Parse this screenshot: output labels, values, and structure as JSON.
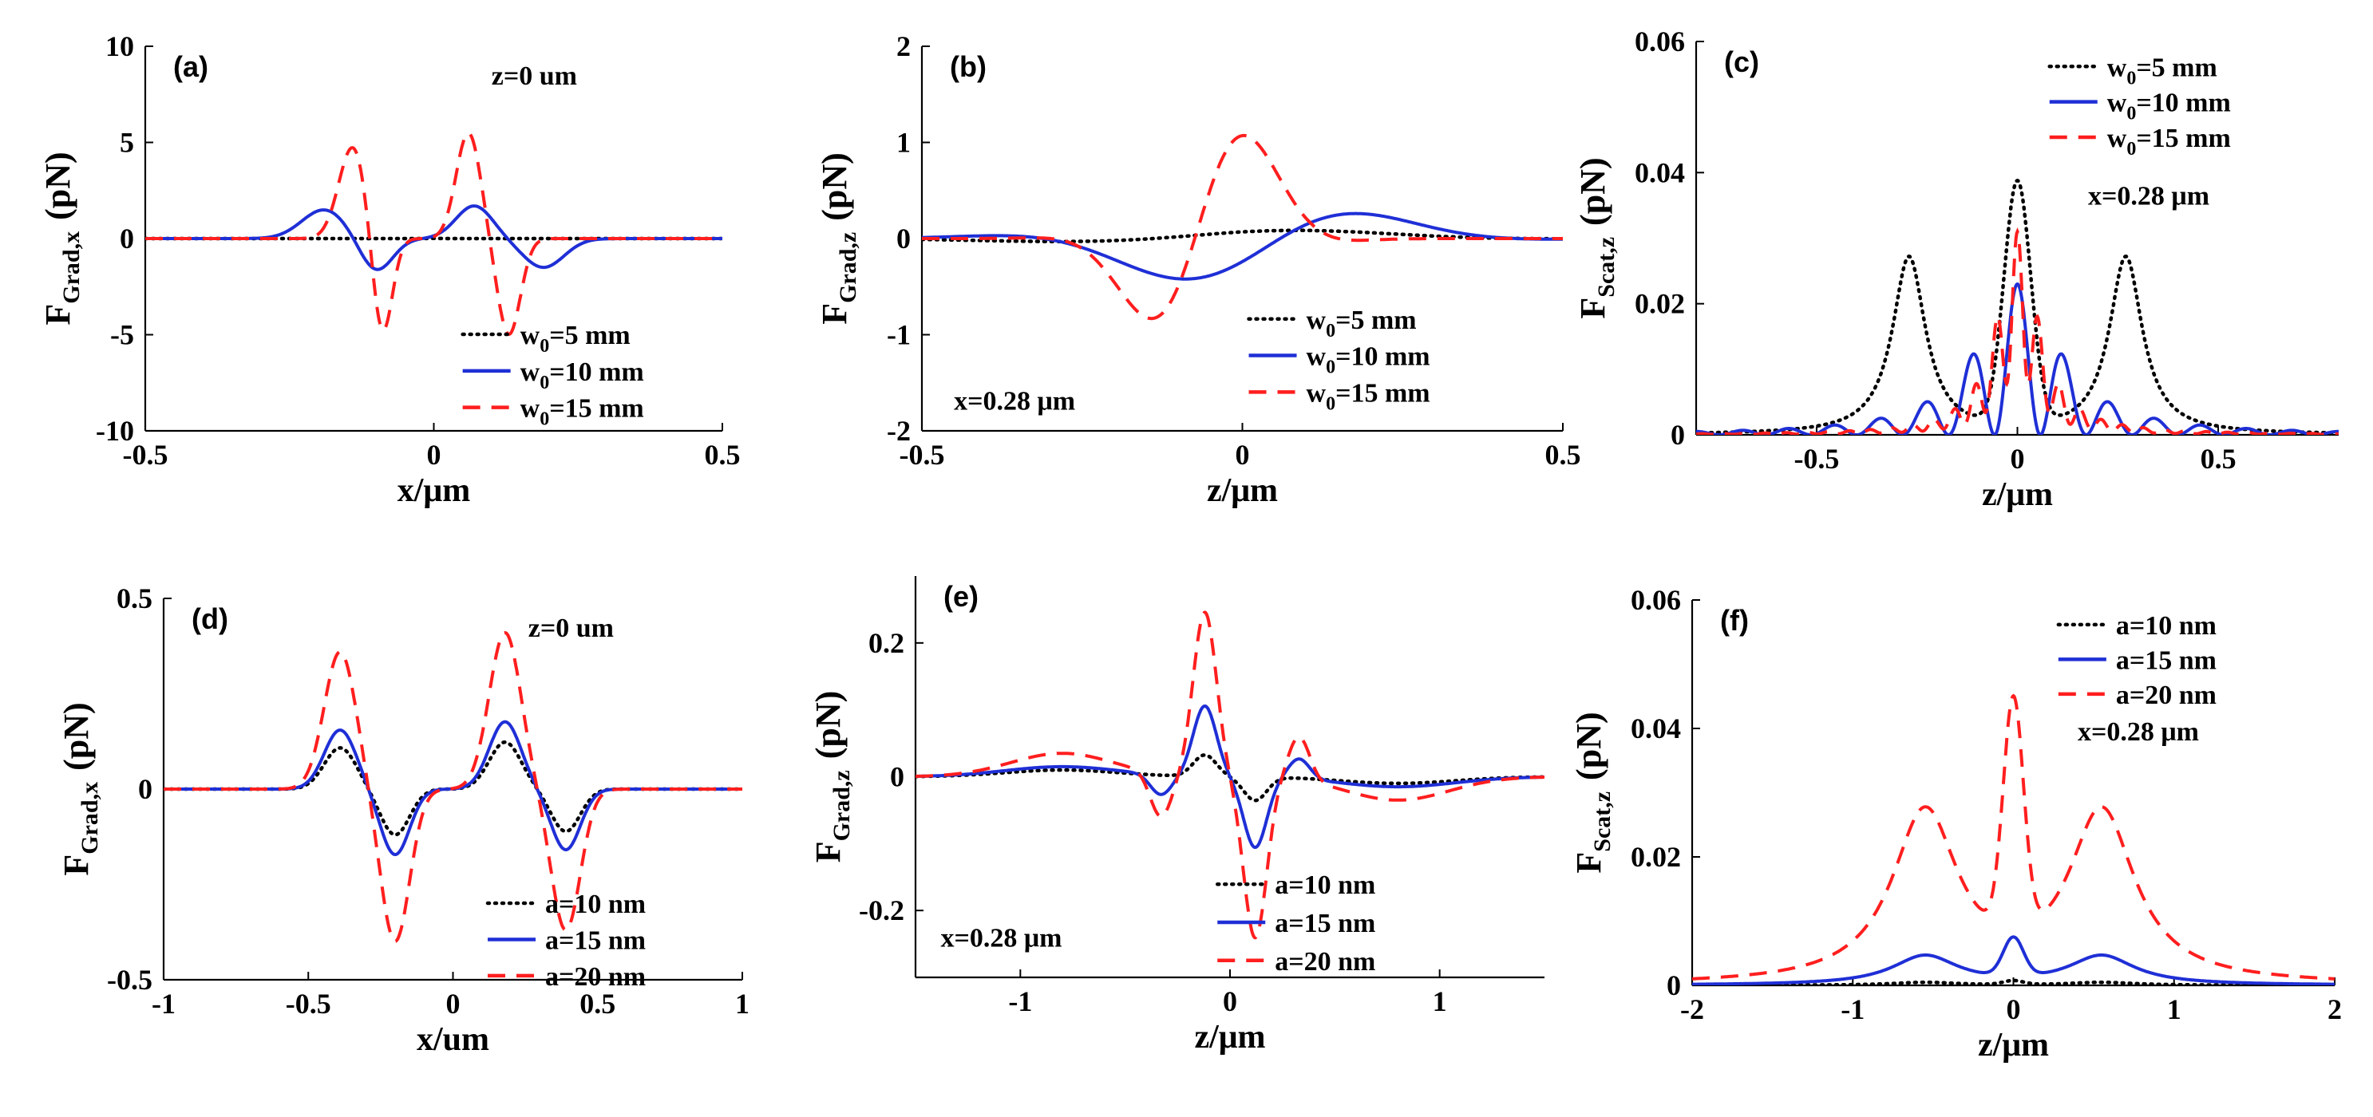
{
  "colors": {
    "black": "#000000",
    "blue": "#1f2fd6",
    "red": "#ff1e1e"
  },
  "chart_data": [
    {
      "id": "a",
      "type": "line",
      "panel_label": "(a)",
      "xlabel": "x/μm",
      "ylabel_main": "F",
      "ylabel_sub": "Grad,x",
      "ylabel_unit": "(pN)",
      "xlim": [
        -0.5,
        0.5
      ],
      "ylim": [
        -10,
        10
      ],
      "xticks": [
        -0.5,
        0,
        0.5
      ],
      "xticklabels": [
        "-0.5",
        "0",
        "0.5"
      ],
      "yticks": [
        -10,
        -5,
        0,
        5,
        10
      ],
      "yticklabels": [
        "-10",
        "-5",
        "0",
        "5",
        "10"
      ],
      "annotations": [
        {
          "text": "z=0 um",
          "at": "top-right"
        }
      ],
      "legend_position": "lower-right",
      "series": [
        {
          "name": "w0=5 mm",
          "main": "w",
          "sub": "0",
          "rest": "=5 mm",
          "style": "dotted",
          "color": "black",
          "mode": "sum",
          "comps": [
            [
              0.008,
              0,
              0.0002,
              0
            ]
          ]
        },
        {
          "name": "w0=10 mm",
          "main": "w",
          "sub": "0",
          "rest": "=10 mm",
          "style": "solid",
          "color": "blue",
          "mode": "sum",
          "comps": [
            [
              1.5,
              -0.19,
              0.003,
              0
            ],
            [
              -1.7,
              -0.1,
              0.0016,
              0
            ],
            [
              1.7,
              0.07,
              0.002,
              0
            ],
            [
              -1.5,
              0.19,
              0.0025,
              0
            ]
          ]
        },
        {
          "name": "w0=15 mm",
          "main": "w",
          "sub": "0",
          "rest": "=15 mm",
          "style": "dashed",
          "color": "red",
          "mode": "sum",
          "comps": [
            [
              4.8,
              -0.14,
              0.0012,
              0
            ],
            [
              -5.3,
              -0.09,
              0.0006,
              0
            ],
            [
              5.5,
              0.06,
              0.0009,
              0
            ],
            [
              -5.0,
              0.13,
              0.0008,
              0
            ]
          ]
        }
      ]
    },
    {
      "id": "b",
      "type": "line",
      "panel_label": "(b)",
      "xlabel": "z/μm",
      "ylabel_main": "F",
      "ylabel_sub": "Grad,z",
      "ylabel_unit": "(pN)",
      "xlim": [
        -0.5,
        0.5
      ],
      "ylim": [
        -2,
        2
      ],
      "xticks": [
        -0.5,
        0,
        0.5
      ],
      "xticklabels": [
        "-0.5",
        "0",
        "0.5"
      ],
      "yticks": [
        -2,
        -1,
        0,
        1,
        2
      ],
      "yticklabels": [
        "-2",
        "-1",
        "0",
        "1",
        "2"
      ],
      "annotations": [
        {
          "text": "x=0.28 μm",
          "at": "bottom-left"
        }
      ],
      "legend_position": "lower-right",
      "series": [
        {
          "name": "w0=5 mm",
          "main": "w",
          "sub": "0",
          "rest": "=5 mm",
          "style": "dotted",
          "color": "black",
          "mode": "osc",
          "osc": {
            "A": 0.28,
            "c": -0.02,
            "s": 0.18,
            "f": 1.5,
            "p": 0.15,
            "beta": 0.5
          }
        },
        {
          "name": "w0=10 mm",
          "main": "w",
          "sub": "0",
          "rest": "=10 mm",
          "style": "solid",
          "color": "blue",
          "mode": "osc",
          "osc": {
            "A": 0.5,
            "c": 0.0,
            "s": 0.18,
            "f": 8.5,
            "p": -0.5,
            "beta": 0.0
          }
        },
        {
          "name": "w0=15 mm",
          "main": "w",
          "sub": "0",
          "rest": "=15 mm",
          "style": "dashed",
          "color": "red",
          "mode": "osc",
          "osc": {
            "A": 1.55,
            "c": -0.06,
            "s": 0.09,
            "f": 14,
            "p": 0.2,
            "beta": 0.0
          }
        }
      ]
    },
    {
      "id": "c",
      "type": "line",
      "panel_label": "(c)",
      "xlabel": "z/μm",
      "ylabel_main": "F",
      "ylabel_sub": "Scat,z",
      "ylabel_unit": "(pN)",
      "xlim": [
        -0.8,
        0.8
      ],
      "ylim": [
        0,
        0.06
      ],
      "xticks": [
        -0.5,
        0,
        0.5
      ],
      "xticklabels": [
        "-0.5",
        "0",
        "0.5"
      ],
      "yticks": [
        0,
        0.02,
        0.04,
        0.06
      ],
      "yticklabels": [
        "0",
        "0.02",
        "0.04",
        "0.06"
      ],
      "annotations": [
        {
          "text": "x=0.28 μm",
          "at": "upper-right"
        }
      ],
      "legend_position": "top-right",
      "series": [
        {
          "name": "w0=5 mm",
          "main": "w",
          "sub": "0",
          "rest": "=5 mm",
          "style": "dotted",
          "color": "black",
          "mode": "sum",
          "comps": [
            [
              0.027,
              -0.27,
              0.05,
              1
            ],
            [
              0.027,
              0.27,
              0.05,
              1
            ],
            [
              0.037,
              0,
              0.0022,
              0
            ]
          ]
        },
        {
          "name": "w0=10 mm",
          "main": "w",
          "sub": "0",
          "rest": "=10 mm",
          "style": "solid",
          "color": "blue",
          "mode": "envcos",
          "env": {
            "A": 0.023,
            "s": 0.12,
            "f": 55,
            "floor": 0.0
          }
        },
        {
          "name": "w0=15 mm",
          "main": "w",
          "sub": "0",
          "rest": "=15 mm",
          "style": "dashed",
          "color": "red",
          "mode": "envcos",
          "env": {
            "A": 0.031,
            "s": 0.06,
            "f": 120,
            "floor": 0.3
          }
        }
      ]
    },
    {
      "id": "d",
      "type": "line",
      "panel_label": "(d)",
      "xlabel": "x/um",
      "ylabel_main": "F",
      "ylabel_sub": "Grad,x",
      "ylabel_unit": "(pN)",
      "xlim": [
        -1,
        1
      ],
      "ylim": [
        -0.5,
        0.5
      ],
      "xticks": [
        -1,
        -0.5,
        0,
        0.5,
        1
      ],
      "xticklabels": [
        "-1",
        "-0.5",
        "0",
        "0.5",
        "1"
      ],
      "yticks": [
        -0.5,
        0,
        0.5
      ],
      "yticklabels": [
        "-0.5",
        "0",
        "0.5"
      ],
      "annotations": [
        {
          "text": "z=0 um",
          "at": "top-right"
        }
      ],
      "legend_position": "lower-right",
      "series": [
        {
          "name": "a=10 nm",
          "style": "dotted",
          "color": "black",
          "mode": "sum",
          "k": 0.3,
          "ref": "w20"
        },
        {
          "name": "a=15 nm",
          "style": "solid",
          "color": "blue",
          "mode": "sum",
          "k": 0.43,
          "ref": "w20"
        },
        {
          "name": "a=20 nm",
          "style": "dashed",
          "color": "red",
          "mode": "sum",
          "comps": [
            [
              0.36,
              -0.39,
              0.006,
              0
            ],
            [
              -0.4,
              -0.2,
              0.005,
              0
            ],
            [
              0.41,
              0.18,
              0.006,
              0
            ],
            [
              -0.37,
              0.39,
              0.005,
              0
            ]
          ],
          "id": "w20"
        }
      ]
    },
    {
      "id": "e",
      "type": "line",
      "panel_label": "(e)",
      "xlabel": "z/μm",
      "ylabel_main": "F",
      "ylabel_sub": "Grad,z",
      "ylabel_unit": "(pN)",
      "xlim": [
        -1.5,
        1.5
      ],
      "ylim": [
        -0.3,
        0.3
      ],
      "xticks": [
        -1,
        0,
        1
      ],
      "xticklabels": [
        "-1",
        "0",
        "1"
      ],
      "yticks": [
        -0.2,
        0,
        0.2
      ],
      "yticklabels": [
        "-0.2",
        "0",
        "0.2"
      ],
      "annotations": [
        {
          "text": "x=0.28 μm",
          "at": "bottom-left"
        }
      ],
      "legend_position": "lower-right",
      "series": [
        {
          "name": "a=10 nm",
          "style": "dotted",
          "color": "black",
          "mode": "sum",
          "comps": [
            [
              0.032,
              -0.12,
              0.006,
              0
            ],
            [
              -0.035,
              0.12,
              0.006,
              0
            ],
            [
              0.01,
              -0.8,
              0.15,
              0
            ],
            [
              -0.01,
              0.8,
              0.15,
              0
            ]
          ]
        },
        {
          "name": "a=15 nm",
          "style": "solid",
          "color": "blue",
          "mode": "sum",
          "comps": [
            [
              0.105,
              -0.12,
              0.006,
              0
            ],
            [
              -0.105,
              0.12,
              0.006,
              0
            ],
            [
              -0.03,
              -0.33,
              0.005,
              0
            ],
            [
              0.03,
              0.33,
              0.005,
              0
            ],
            [
              0.015,
              -0.8,
              0.15,
              0
            ],
            [
              -0.015,
              0.8,
              0.15,
              0
            ]
          ]
        },
        {
          "name": "a=20 nm",
          "style": "dashed",
          "color": "red",
          "mode": "sum",
          "comps": [
            [
              0.245,
              -0.12,
              0.006,
              0
            ],
            [
              -0.24,
              0.12,
              0.006,
              0
            ],
            [
              -0.065,
              -0.33,
              0.005,
              0
            ],
            [
              0.065,
              0.33,
              0.005,
              0
            ],
            [
              0.035,
              -0.8,
              0.12,
              0
            ],
            [
              -0.035,
              0.8,
              0.12,
              0
            ]
          ]
        }
      ]
    },
    {
      "id": "f",
      "type": "line",
      "panel_label": "(f)",
      "xlabel": "z/μm",
      "ylabel_main": "F",
      "ylabel_sub": "Scat,z",
      "ylabel_unit": "(pN)",
      "xlim": [
        -2,
        2
      ],
      "ylim": [
        0,
        0.06
      ],
      "xticks": [
        -2,
        -1,
        0,
        1,
        2
      ],
      "xticklabels": [
        "-2",
        "-1",
        "0",
        "1",
        "2"
      ],
      "yticks": [
        0,
        0.02,
        0.04,
        0.06
      ],
      "yticklabels": [
        "0",
        "0.02",
        "0.04",
        "0.06"
      ],
      "annotations": [
        {
          "text": "x=0.28 μm",
          "at": "upper-right"
        }
      ],
      "legend_position": "top-right",
      "series": [
        {
          "name": "a=10 nm",
          "style": "dotted",
          "color": "black",
          "mode": "sum",
          "k": 0.1,
          "ref": "f15"
        },
        {
          "name": "a=15 nm",
          "style": "solid",
          "color": "blue",
          "mode": "sum",
          "comps": [
            [
              0.0045,
              -0.55,
              0.25,
              1
            ],
            [
              0.0045,
              0.55,
              0.25,
              1
            ],
            [
              0.006,
              0,
              0.008,
              0
            ]
          ],
          "id": "f15"
        },
        {
          "name": "a=20 nm",
          "style": "dashed",
          "color": "red",
          "mode": "sum",
          "comps": [
            [
              0.0265,
              -0.55,
              0.25,
              1
            ],
            [
              0.0265,
              0.55,
              0.25,
              1
            ],
            [
              0.036,
              0,
              0.008,
              0
            ]
          ]
        }
      ]
    }
  ]
}
